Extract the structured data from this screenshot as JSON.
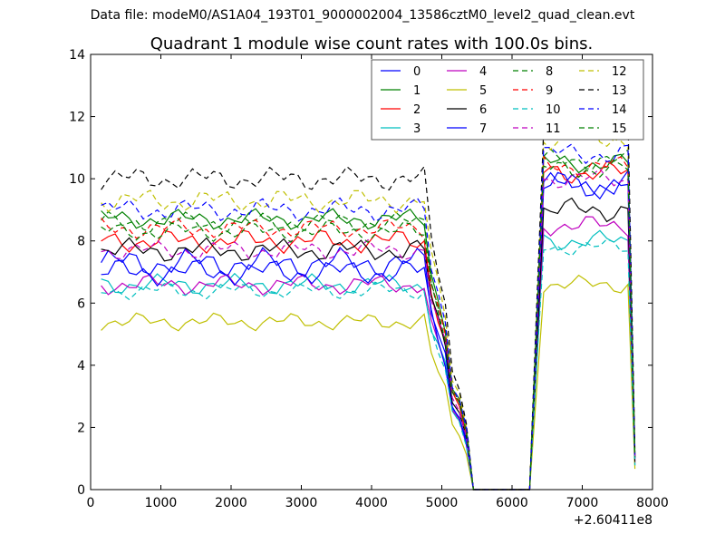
{
  "suptitle": "Data file: modeM0/AS1A04_193T01_9000002004_13586cztM0_level2_quad_clean.evt",
  "chart_data": {
    "type": "line",
    "title": "Quadrant 1 module wise count rates with 100.0s bins.",
    "xlabel": "",
    "ylabel": "",
    "x_offset_label": "+2.60411e8",
    "xlim": [
      0,
      8000
    ],
    "ylim": [
      0,
      14
    ],
    "xticks": [
      "0",
      "1000",
      "2000",
      "3000",
      "4000",
      "5000",
      "6000",
      "7000",
      "8000"
    ],
    "yticks": [
      "0",
      "2",
      "4",
      "6",
      "8",
      "10",
      "12",
      "14"
    ],
    "grid": false,
    "legend_position": "top-right",
    "legend_columns": 4,
    "x": [
      150,
      250,
      350,
      450,
      550,
      650,
      750,
      850,
      950,
      1050,
      1150,
      1250,
      1350,
      1450,
      1550,
      1650,
      1750,
      1850,
      1950,
      2050,
      2150,
      2250,
      2350,
      2450,
      2550,
      2650,
      2750,
      2850,
      2950,
      3050,
      3150,
      3250,
      3350,
      3450,
      3550,
      3650,
      3750,
      3850,
      3950,
      4050,
      4150,
      4250,
      4350,
      4450,
      4550,
      4650,
      4750,
      4850,
      4950,
      5050,
      5150,
      5250,
      5350,
      5450,
      5550,
      5650,
      5750,
      5850,
      5950,
      6050,
      6150,
      6250,
      6350,
      6450,
      6550,
      6650,
      6750,
      6850,
      6950,
      7050,
      7150,
      7250,
      7350,
      7450,
      7550,
      7650,
      7750
    ],
    "profile": [
      1,
      1,
      1,
      1,
      1,
      1,
      1,
      1,
      1,
      1,
      1,
      1,
      1,
      1,
      1,
      1,
      1,
      1,
      1,
      1,
      1,
      1,
      1,
      1,
      1,
      1,
      1,
      1,
      1,
      1,
      1,
      1,
      1,
      1,
      1,
      1,
      1,
      1,
      1,
      1,
      1,
      1,
      1,
      1,
      1,
      1,
      1,
      0.8,
      0.7,
      0.6,
      0.38,
      0.33,
      0.22,
      0,
      0,
      0,
      0,
      0,
      0,
      0,
      0,
      0,
      0.5,
      1,
      1,
      1,
      1,
      1,
      1,
      1,
      1,
      1,
      1,
      1,
      1,
      1,
      0.1
    ],
    "series": [
      {
        "name": "0",
        "color": "#0000ff",
        "style": "solid",
        "base": 7.3,
        "late": 9.8,
        "amp": 0.5
      },
      {
        "name": "1",
        "color": "#008000",
        "style": "solid",
        "base": 8.7,
        "late": 10.5,
        "amp": 0.35
      },
      {
        "name": "2",
        "color": "#ff0000",
        "style": "solid",
        "base": 8.0,
        "late": 10.2,
        "amp": 0.4
      },
      {
        "name": "3",
        "color": "#00bfbf",
        "style": "solid",
        "base": 6.6,
        "late": 8.0,
        "amp": 0.35
      },
      {
        "name": "4",
        "color": "#bf00bf",
        "style": "solid",
        "base": 6.6,
        "late": 8.5,
        "amp": 0.35
      },
      {
        "name": "5",
        "color": "#bfbf00",
        "style": "solid",
        "base": 5.4,
        "late": 6.6,
        "amp": 0.3
      },
      {
        "name": "6",
        "color": "#000000",
        "style": "solid",
        "base": 7.7,
        "late": 9.0,
        "amp": 0.4
      },
      {
        "name": "7",
        "color": "#0000ff",
        "style": "solid",
        "base": 7.0,
        "late": 9.8,
        "amp": 0.45
      },
      {
        "name": "8",
        "color": "#008000",
        "style": "dashed",
        "base": 8.6,
        "late": 10.6,
        "amp": 0.35
      },
      {
        "name": "9",
        "color": "#ff0000",
        "style": "dashed",
        "base": 8.4,
        "late": 10.4,
        "amp": 0.35
      },
      {
        "name": "10",
        "color": "#00bfbf",
        "style": "dashed",
        "base": 6.4,
        "late": 7.8,
        "amp": 0.3
      },
      {
        "name": "11",
        "color": "#bf00bf",
        "style": "dashed",
        "base": 7.7,
        "late": 10.0,
        "amp": 0.35
      },
      {
        "name": "12",
        "color": "#bfbf00",
        "style": "dashed",
        "base": 9.3,
        "late": 11.3,
        "amp": 0.4
      },
      {
        "name": "13",
        "color": "#000000",
        "style": "dashed",
        "base": 10.0,
        "late": 11.9,
        "amp": 0.4
      },
      {
        "name": "14",
        "color": "#0000ff",
        "style": "dashed",
        "base": 9.0,
        "late": 10.8,
        "amp": 0.4
      },
      {
        "name": "15",
        "color": "#008000",
        "style": "dashed",
        "base": 8.3,
        "late": 10.3,
        "amp": 0.35
      }
    ]
  }
}
